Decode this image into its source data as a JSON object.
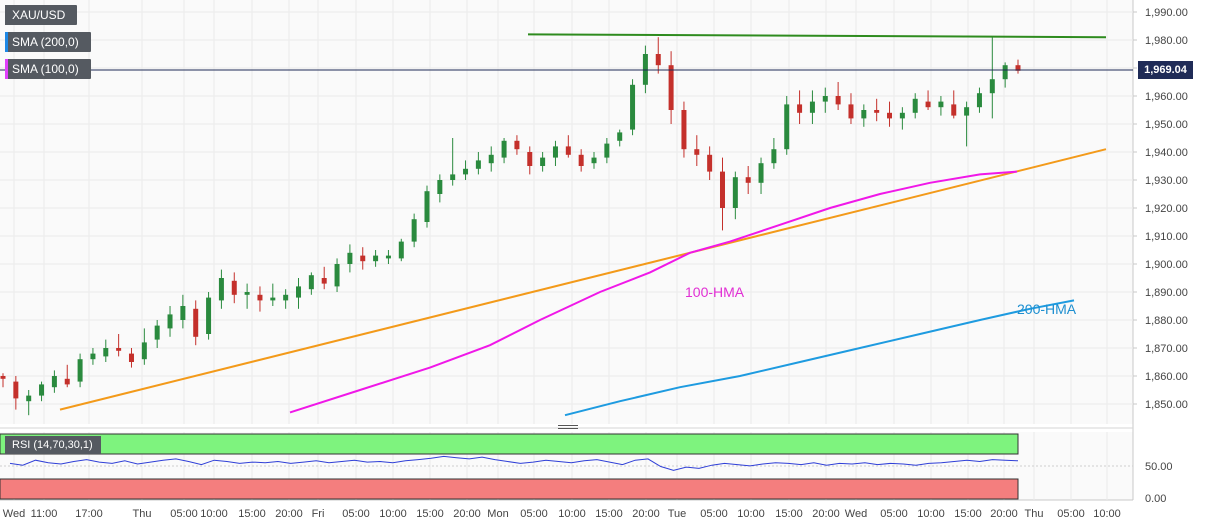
{
  "symbol": "XAU/USD",
  "indicators": [
    {
      "label": "SMA (200,0)",
      "color": "#1e88e5"
    },
    {
      "label": "SMA (100,0)",
      "color": "#e040fb"
    }
  ],
  "last_price": "1,969.04",
  "annotations": {
    "hma100": "100-HMA",
    "hma200": "200-HMA"
  },
  "rsi": {
    "label": "RSI (14,70,30,1)",
    "ticks": [
      "50.00",
      "0.00"
    ],
    "overbought_color": "#7ef37e",
    "oversold_color": "#f47e7e",
    "line_color": "#2f3fd7"
  },
  "chart_data": {
    "type": "candlestick",
    "y_ticks": [
      "1,990.00",
      "1,980.00",
      "1,970.00",
      "1,960.00",
      "1,950.00",
      "1,940.00",
      "1,930.00",
      "1,920.00",
      "1,910.00",
      "1,900.00",
      "1,890.00",
      "1,880.00",
      "1,870.00",
      "1,860.00",
      "1,850.00"
    ],
    "y_tick_values": [
      1990,
      1980,
      1970,
      1960,
      1950,
      1940,
      1930,
      1920,
      1910,
      1900,
      1890,
      1880,
      1870,
      1860,
      1850
    ],
    "ylim": [
      1844,
      1994
    ],
    "x_ticks": [
      "Wed",
      "11:00",
      "17:00",
      "Thu",
      "05:00",
      "10:00",
      "15:00",
      "20:00",
      "Fri",
      "05:00",
      "10:00",
      "15:00",
      "20:00",
      "Mon",
      "05:00",
      "10:00",
      "15:00",
      "20:00",
      "Tue",
      "05:00",
      "10:00",
      "15:00",
      "20:00",
      "Wed",
      "05:00",
      "10:00",
      "15:00",
      "20:00",
      "Thu",
      "05:00",
      "10:00"
    ],
    "candles": [
      [
        1860,
        1861,
        1856,
        1859
      ],
      [
        1858,
        1860,
        1848,
        1852
      ],
      [
        1851,
        1855,
        1846,
        1853
      ],
      [
        1853,
        1858,
        1851,
        1857
      ],
      [
        1856,
        1862,
        1854,
        1860
      ],
      [
        1859,
        1864,
        1856,
        1857
      ],
      [
        1858,
        1868,
        1856,
        1866
      ],
      [
        1866,
        1870,
        1864,
        1868
      ],
      [
        1867,
        1873,
        1865,
        1870
      ],
      [
        1870,
        1875,
        1867,
        1869
      ],
      [
        1868,
        1870,
        1863,
        1865
      ],
      [
        1866,
        1877,
        1864,
        1872
      ],
      [
        1873,
        1880,
        1870,
        1878
      ],
      [
        1877,
        1885,
        1874,
        1882
      ],
      [
        1880,
        1889,
        1877,
        1885
      ],
      [
        1884,
        1887,
        1871,
        1874
      ],
      [
        1875,
        1890,
        1873,
        1888
      ],
      [
        1887,
        1898,
        1884,
        1895
      ],
      [
        1894,
        1897,
        1886,
        1889
      ],
      [
        1889,
        1893,
        1884,
        1890
      ],
      [
        1889,
        1892,
        1883,
        1887
      ],
      [
        1887,
        1893,
        1885,
        1888
      ],
      [
        1887,
        1891,
        1884,
        1889
      ],
      [
        1888,
        1895,
        1884,
        1892
      ],
      [
        1891,
        1897,
        1889,
        1896
      ],
      [
        1895,
        1899,
        1891,
        1893
      ],
      [
        1892,
        1902,
        1890,
        1900
      ],
      [
        1900,
        1907,
        1897,
        1904
      ],
      [
        1903,
        1906,
        1898,
        1901
      ],
      [
        1901,
        1905,
        1899,
        1903
      ],
      [
        1902,
        1905,
        1900,
        1903
      ],
      [
        1902,
        1909,
        1901,
        1908
      ],
      [
        1908,
        1918,
        1906,
        1916
      ],
      [
        1915,
        1928,
        1913,
        1926
      ],
      [
        1925,
        1932,
        1922,
        1930
      ],
      [
        1930,
        1945,
        1928,
        1932
      ],
      [
        1932,
        1937,
        1930,
        1934
      ],
      [
        1934,
        1940,
        1932,
        1937
      ],
      [
        1936,
        1942,
        1933,
        1939
      ],
      [
        1938,
        1945,
        1936,
        1944
      ],
      [
        1944,
        1946,
        1939,
        1941
      ],
      [
        1940,
        1942,
        1932,
        1935
      ],
      [
        1935,
        1940,
        1933,
        1938
      ],
      [
        1938,
        1944,
        1935,
        1942
      ],
      [
        1942,
        1946,
        1938,
        1939
      ],
      [
        1939,
        1941,
        1933,
        1935
      ],
      [
        1936,
        1940,
        1934,
        1938
      ],
      [
        1938,
        1945,
        1936,
        1943
      ],
      [
        1944,
        1948,
        1942,
        1947
      ],
      [
        1948,
        1966,
        1946,
        1964
      ],
      [
        1964,
        1978,
        1961,
        1975
      ],
      [
        1975,
        1981,
        1968,
        1971
      ],
      [
        1971,
        1976,
        1950,
        1955
      ],
      [
        1955,
        1958,
        1938,
        1941
      ],
      [
        1941,
        1946,
        1935,
        1939
      ],
      [
        1939,
        1942,
        1930,
        1933
      ],
      [
        1933,
        1938,
        1912,
        1920
      ],
      [
        1920,
        1933,
        1916,
        1931
      ],
      [
        1931,
        1935,
        1925,
        1929
      ],
      [
        1929,
        1938,
        1925,
        1936
      ],
      [
        1936,
        1945,
        1934,
        1941
      ],
      [
        1941,
        1960,
        1939,
        1957
      ],
      [
        1957,
        1962,
        1950,
        1954
      ],
      [
        1954,
        1962,
        1950,
        1958
      ],
      [
        1958,
        1963,
        1954,
        1960
      ],
      [
        1960,
        1965,
        1955,
        1957
      ],
      [
        1957,
        1961,
        1950,
        1952
      ],
      [
        1952,
        1957,
        1949,
        1955
      ],
      [
        1955,
        1959,
        1951,
        1954
      ],
      [
        1954,
        1958,
        1949,
        1952
      ],
      [
        1952,
        1956,
        1948,
        1954
      ],
      [
        1954,
        1961,
        1952,
        1959
      ],
      [
        1958,
        1962,
        1955,
        1956
      ],
      [
        1956,
        1960,
        1953,
        1958
      ],
      [
        1957,
        1962,
        1952,
        1953
      ],
      [
        1953,
        1958,
        1942,
        1956
      ],
      [
        1956,
        1963,
        1954,
        1961
      ],
      [
        1961,
        1981,
        1952,
        1966
      ],
      [
        1966,
        1972,
        1963,
        1971
      ],
      [
        1971,
        1973,
        1968,
        1969
      ]
    ],
    "annotated_lines": [
      {
        "name": "resistance",
        "color": "#2e8b1e",
        "points": [
          [
            0.215,
            1982
          ],
          [
            0.545,
            1981
          ]
        ]
      },
      {
        "name": "support trendline",
        "color": "#f39a1a",
        "points": [
          [
            0.027,
            1848
          ],
          [
            0.545,
            1941
          ]
        ]
      },
      {
        "name": "100-HMA",
        "color": "#f018e8"
      },
      {
        "name": "200-HMA",
        "color": "#1e9be0"
      }
    ]
  }
}
